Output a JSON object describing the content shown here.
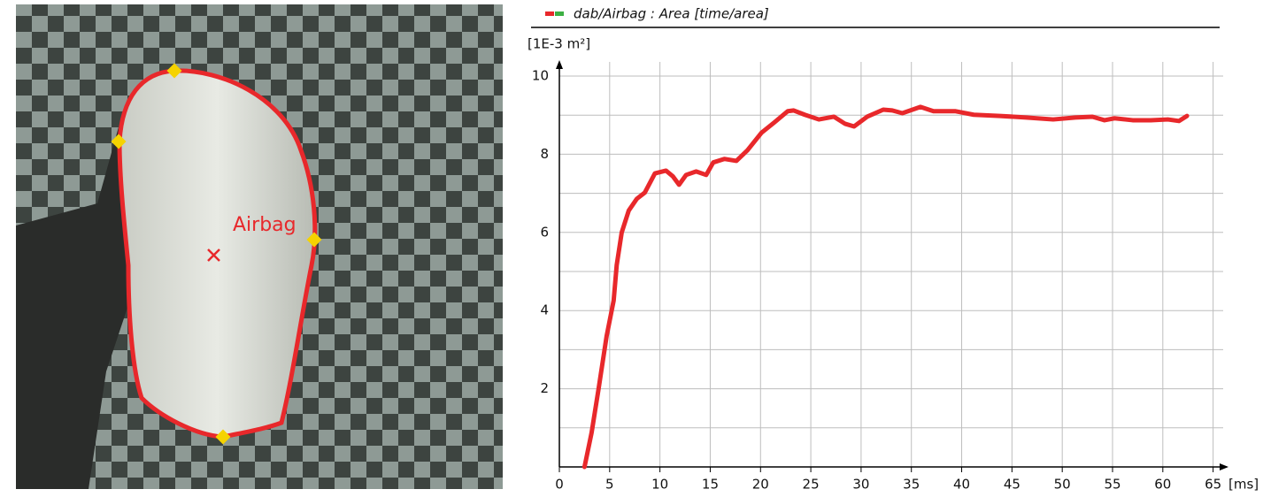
{
  "image_annotation": "Airbag",
  "chart_data": {
    "type": "line",
    "y_unit_label": "[1E-3 m²]",
    "x_unit_label": "[ms]",
    "x": [
      2.5,
      3.2,
      3.9,
      4.7,
      5.4,
      5.7,
      6.2,
      6.9,
      7.7,
      8.5,
      9.5,
      10.6,
      11.3,
      11.9,
      12.6,
      13.6,
      14.6,
      15.3,
      16.4,
      17.6,
      18.7,
      20.1,
      21.4,
      22.7,
      23.3,
      24.4,
      25.8,
      27.3,
      28.4,
      29.3,
      30.6,
      32.2,
      33.1,
      34.1,
      35.9,
      37.2,
      39.4,
      41.2,
      43.8,
      46.4,
      49.1,
      51.3,
      53.0,
      54.2,
      55.2,
      57.0,
      58.8,
      60.5,
      61.6,
      62.4
    ],
    "series": [
      {
        "name": "dab/Airbag : Area [time/area]",
        "color": "#e8282b",
        "values": [
          0,
          0.87,
          2,
          3.35,
          4.26,
          5.16,
          6.0,
          6.56,
          6.86,
          7.02,
          7.51,
          7.58,
          7.43,
          7.22,
          7.47,
          7.56,
          7.47,
          7.79,
          7.88,
          7.83,
          8.1,
          8.55,
          8.82,
          9.1,
          9.12,
          9.01,
          8.89,
          8.96,
          8.78,
          8.71,
          8.96,
          9.14,
          9.12,
          9.05,
          9.21,
          9.1,
          9.1,
          9.01,
          8.98,
          8.94,
          8.89,
          8.94,
          8.96,
          8.87,
          8.92,
          8.87,
          8.87,
          8.89,
          8.85,
          8.98
        ]
      }
    ],
    "xlim": [
      0,
      66
    ],
    "ylim": [
      0,
      10
    ],
    "xticks": [
      0,
      5,
      10,
      15,
      20,
      25,
      30,
      35,
      40,
      45,
      50,
      55,
      60,
      65
    ],
    "yticks": [
      2,
      4,
      6,
      8,
      10
    ],
    "y_minor_ticks": [
      1,
      3,
      5,
      7,
      9
    ],
    "grid": true
  }
}
